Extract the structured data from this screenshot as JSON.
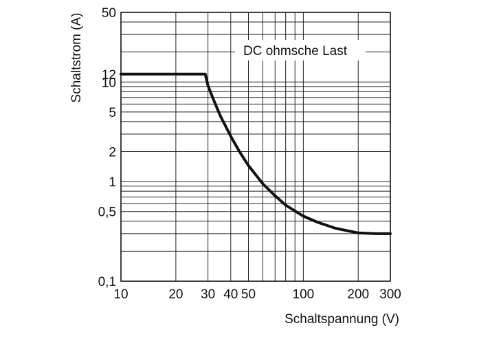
{
  "chart_data": {
    "type": "line",
    "title": "",
    "xlabel": "Schaltspannung (V)",
    "ylabel": "Schaltstrom (A)",
    "x_scale": "log",
    "y_scale": "log",
    "xlim": [
      10,
      300
    ],
    "ylim": [
      0.1,
      50
    ],
    "grid": true,
    "x_ticks": [
      {
        "value": 10,
        "label": "10"
      },
      {
        "value": 20,
        "label": "20"
      },
      {
        "value": 30,
        "label": "30"
      },
      {
        "value": 40,
        "label": "40"
      },
      {
        "value": 50,
        "label": "50"
      },
      {
        "value": 100,
        "label": "100"
      },
      {
        "value": 200,
        "label": "200"
      },
      {
        "value": 300,
        "label": "300"
      }
    ],
    "y_ticks": [
      {
        "value": 0.1,
        "label": "0,1"
      },
      {
        "value": 0.5,
        "label": "0,5"
      },
      {
        "value": 1,
        "label": "1"
      },
      {
        "value": 2,
        "label": "2"
      },
      {
        "value": 5,
        "label": "5"
      },
      {
        "value": 10,
        "label": "10"
      },
      {
        "value": 12,
        "label": "12"
      },
      {
        "value": 50,
        "label": "50"
      }
    ],
    "x_gridlines": [
      10,
      20,
      30,
      40,
      50,
      60,
      70,
      80,
      90,
      100,
      200,
      300
    ],
    "y_gridlines": [
      0.1,
      0.2,
      0.3,
      0.4,
      0.5,
      0.6,
      0.7,
      0.8,
      0.9,
      1,
      2,
      3,
      4,
      5,
      6,
      7,
      8,
      9,
      10,
      20,
      30,
      40,
      50
    ],
    "annotation": "DC ohmsche Last",
    "series": [
      {
        "x": [
          10,
          29,
          30,
          32,
          35,
          40,
          45,
          50,
          60,
          70,
          80,
          100,
          120,
          150,
          200,
          250,
          300
        ],
        "y": [
          12,
          12,
          9.2,
          6.8,
          4.6,
          2.85,
          1.95,
          1.45,
          0.95,
          0.72,
          0.58,
          0.45,
          0.39,
          0.34,
          0.305,
          0.3,
          0.3
        ]
      }
    ]
  }
}
